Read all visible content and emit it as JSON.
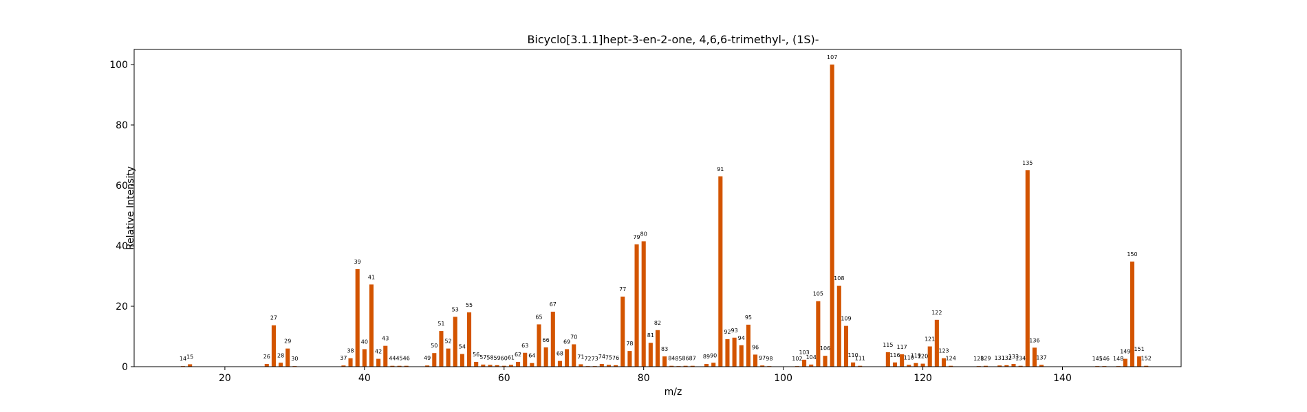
{
  "chart_data": {
    "type": "bar",
    "title": "Bicyclo[3.1.1]hept-3-en-2-one, 4,6,6-trimethyl-, (1S)-",
    "xlabel": "m/z",
    "ylabel": "Relative Intensity",
    "xlim": [
      7,
      157
    ],
    "ylim": [
      0,
      105
    ],
    "xticks": [
      20,
      40,
      60,
      80,
      100,
      120,
      140
    ],
    "yticks": [
      0,
      20,
      40,
      60,
      80,
      100
    ],
    "bar_color": "#d35400",
    "grid": false,
    "points": [
      {
        "x": 14,
        "y": 0.2
      },
      {
        "x": 15,
        "y": 0.8
      },
      {
        "x": 26,
        "y": 0.9
      },
      {
        "x": 27,
        "y": 13.7
      },
      {
        "x": 28,
        "y": 1.3
      },
      {
        "x": 29,
        "y": 6.0
      },
      {
        "x": 30,
        "y": 0.2
      },
      {
        "x": 37,
        "y": 0.4
      },
      {
        "x": 38,
        "y": 2.8
      },
      {
        "x": 39,
        "y": 32.3
      },
      {
        "x": 40,
        "y": 5.8
      },
      {
        "x": 41,
        "y": 27.2
      },
      {
        "x": 42,
        "y": 2.6
      },
      {
        "x": 43,
        "y": 6.9
      },
      {
        "x": 44,
        "y": 0.3
      },
      {
        "x": 45,
        "y": 0.3
      },
      {
        "x": 46,
        "y": 0.3
      },
      {
        "x": 49,
        "y": 0.4
      },
      {
        "x": 50,
        "y": 4.5
      },
      {
        "x": 51,
        "y": 11.8
      },
      {
        "x": 52,
        "y": 6.0
      },
      {
        "x": 53,
        "y": 16.5
      },
      {
        "x": 54,
        "y": 4.2
      },
      {
        "x": 55,
        "y": 18.0
      },
      {
        "x": 56,
        "y": 1.6
      },
      {
        "x": 57,
        "y": 0.7
      },
      {
        "x": 58,
        "y": 0.6
      },
      {
        "x": 59,
        "y": 0.5
      },
      {
        "x": 60,
        "y": 0.3
      },
      {
        "x": 61,
        "y": 0.6
      },
      {
        "x": 62,
        "y": 1.6
      },
      {
        "x": 63,
        "y": 4.6
      },
      {
        "x": 64,
        "y": 1.2
      },
      {
        "x": 65,
        "y": 14.0
      },
      {
        "x": 66,
        "y": 6.4
      },
      {
        "x": 67,
        "y": 18.2
      },
      {
        "x": 68,
        "y": 1.9
      },
      {
        "x": 69,
        "y": 5.8
      },
      {
        "x": 70,
        "y": 7.4
      },
      {
        "x": 71,
        "y": 0.8
      },
      {
        "x": 72,
        "y": 0.2
      },
      {
        "x": 73,
        "y": 0.2
      },
      {
        "x": 74,
        "y": 0.9
      },
      {
        "x": 75,
        "y": 0.6
      },
      {
        "x": 76,
        "y": 0.5
      },
      {
        "x": 77,
        "y": 23.2
      },
      {
        "x": 78,
        "y": 5.2
      },
      {
        "x": 79,
        "y": 40.5
      },
      {
        "x": 80,
        "y": 41.5
      },
      {
        "x": 81,
        "y": 7.9
      },
      {
        "x": 82,
        "y": 12.1
      },
      {
        "x": 83,
        "y": 3.4
      },
      {
        "x": 84,
        "y": 0.3
      },
      {
        "x": 85,
        "y": 0.2
      },
      {
        "x": 86,
        "y": 0.3
      },
      {
        "x": 87,
        "y": 0.3
      },
      {
        "x": 89,
        "y": 0.9
      },
      {
        "x": 90,
        "y": 1.3
      },
      {
        "x": 91,
        "y": 63.0
      },
      {
        "x": 92,
        "y": 9.1
      },
      {
        "x": 93,
        "y": 9.6
      },
      {
        "x": 94,
        "y": 7.1
      },
      {
        "x": 95,
        "y": 13.9
      },
      {
        "x": 96,
        "y": 4.0
      },
      {
        "x": 97,
        "y": 0.4
      },
      {
        "x": 98,
        "y": 0.2
      },
      {
        "x": 102,
        "y": 0.2
      },
      {
        "x": 103,
        "y": 2.3
      },
      {
        "x": 104,
        "y": 0.7
      },
      {
        "x": 105,
        "y": 21.7
      },
      {
        "x": 106,
        "y": 3.6
      },
      {
        "x": 107,
        "y": 100.0
      },
      {
        "x": 108,
        "y": 26.8
      },
      {
        "x": 109,
        "y": 13.5
      },
      {
        "x": 110,
        "y": 1.4
      },
      {
        "x": 111,
        "y": 0.3
      },
      {
        "x": 115,
        "y": 4.8
      },
      {
        "x": 116,
        "y": 1.4
      },
      {
        "x": 117,
        "y": 4.1
      },
      {
        "x": 118,
        "y": 0.6
      },
      {
        "x": 119,
        "y": 1.2
      },
      {
        "x": 120,
        "y": 1.0
      },
      {
        "x": 121,
        "y": 6.7
      },
      {
        "x": 122,
        "y": 15.5
      },
      {
        "x": 123,
        "y": 2.8
      },
      {
        "x": 124,
        "y": 0.3
      },
      {
        "x": 128,
        "y": 0.2
      },
      {
        "x": 129,
        "y": 0.3
      },
      {
        "x": 131,
        "y": 0.4
      },
      {
        "x": 132,
        "y": 0.5
      },
      {
        "x": 133,
        "y": 0.9
      },
      {
        "x": 134,
        "y": 0.3
      },
      {
        "x": 135,
        "y": 65.0
      },
      {
        "x": 136,
        "y": 6.3
      },
      {
        "x": 137,
        "y": 0.6
      },
      {
        "x": 145,
        "y": 0.2
      },
      {
        "x": 146,
        "y": 0.2
      },
      {
        "x": 148,
        "y": 0.2
      },
      {
        "x": 149,
        "y": 2.6
      },
      {
        "x": 150,
        "y": 34.8
      },
      {
        "x": 151,
        "y": 3.4
      },
      {
        "x": 152,
        "y": 0.3
      }
    ]
  }
}
